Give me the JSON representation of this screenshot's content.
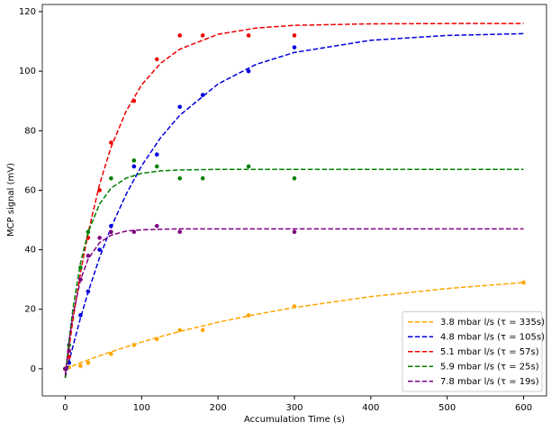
{
  "chart_data": {
    "type": "scatter",
    "x_label": "Accumulation Time (s)",
    "y_label": "MCP signal (mV)",
    "xlim": [
      -30,
      630
    ],
    "xticks": [
      0,
      100,
      200,
      300,
      400,
      500,
      600
    ],
    "ylim": [
      -9.1,
      122.4
    ],
    "yticks": [
      0,
      20,
      40,
      60,
      80,
      100,
      120
    ],
    "legend": "lower right",
    "series": [
      {
        "name": "3.8 mbar l/s (τ = 335s)",
        "color": "orange",
        "x": [
          0,
          5,
          20,
          30,
          60,
          90,
          120,
          150,
          180,
          240,
          300,
          600
        ],
        "values": [
          0,
          0.5,
          1,
          2,
          5,
          8,
          10,
          13,
          13,
          18,
          21,
          29
        ],
        "fit_x": [
          0,
          5,
          10,
          20,
          30,
          45,
          60,
          80,
          100,
          125,
          150,
          200,
          250,
          300,
          400,
          500,
          600
        ],
        "fit_values": [
          0,
          0.51,
          1.02,
          2.02,
          2.98,
          4.37,
          5.71,
          7.39,
          8.98,
          10.84,
          12.56,
          15.65,
          18.3,
          20.59,
          24.26,
          26.98,
          28.99
        ]
      },
      {
        "name": "4.8 mbar l/s (τ = 105s)",
        "color": "#0000dd",
        "x": [
          0,
          5,
          20,
          30,
          45,
          60,
          90,
          120,
          150,
          180,
          240,
          300
        ],
        "values": [
          0,
          2,
          18,
          26,
          40,
          48,
          68,
          72,
          88,
          92,
          100,
          108
        ],
        "fit_x": [
          0,
          5,
          10,
          20,
          30,
          45,
          60,
          80,
          100,
          125,
          150,
          200,
          250,
          300,
          400,
          500,
          600
        ],
        "fit_values": [
          -3,
          2.4,
          7.5,
          17.1,
          25.8,
          37.4,
          47.5,
          58.8,
          68.2,
          77.7,
          85.2,
          95.7,
          102.3,
          106.3,
          110.4,
          112,
          112.6
        ]
      },
      {
        "name": "5.1 mbar l/s (τ = 57s)",
        "color": "#ee0000",
        "x": [
          0,
          5,
          20,
          30,
          45,
          60,
          90,
          120,
          150,
          180,
          240,
          300
        ],
        "values": [
          0,
          4,
          30,
          44,
          60,
          76,
          90,
          104,
          112,
          112,
          112,
          112
        ],
        "fit_x": [
          0,
          5,
          10,
          20,
          30,
          45,
          60,
          80,
          100,
          125,
          150,
          200,
          250,
          300,
          400,
          500,
          600
        ],
        "fit_values": [
          -3,
          7,
          16.2,
          32.2,
          45.7,
          62,
          74.5,
          86.7,
          95.4,
          102.7,
          107.4,
          112.4,
          114.5,
          115.4,
          115.9,
          116,
          116
        ]
      },
      {
        "name": "5.9 mbar l/s (τ = 25s)",
        "color": "green",
        "x": [
          0,
          5,
          20,
          30,
          60,
          90,
          120,
          150,
          180,
          240,
          300
        ],
        "values": [
          0,
          8,
          34,
          46,
          64,
          70,
          68,
          64,
          64,
          68,
          64
        ],
        "fit_x": [
          0,
          5,
          10,
          20,
          30,
          45,
          60,
          80,
          100,
          125,
          150,
          200,
          250,
          300,
          400,
          500,
          600
        ],
        "fit_values": [
          -3,
          9.7,
          20.1,
          35.6,
          45.9,
          55.4,
          60.7,
          64.1,
          65.7,
          66.5,
          66.8,
          67,
          67,
          67,
          67,
          67,
          67
        ]
      },
      {
        "name": "7.8 mbar l/s (τ = 19s)",
        "color": "purple",
        "x": [
          0,
          5,
          20,
          30,
          45,
          60,
          90,
          120,
          150,
          300
        ],
        "values": [
          0,
          6,
          30,
          38,
          44,
          46,
          46,
          48,
          46,
          46
        ],
        "fit_x": [
          0,
          5,
          10,
          20,
          30,
          45,
          60,
          80,
          100,
          125,
          150,
          200,
          250,
          300,
          400,
          500,
          600
        ],
        "fit_values": [
          -2,
          9.3,
          18,
          29.9,
          36.9,
          42.4,
          44.9,
          46.3,
          46.7,
          46.9,
          47,
          47,
          47,
          47,
          47,
          47,
          47
        ]
      }
    ]
  }
}
